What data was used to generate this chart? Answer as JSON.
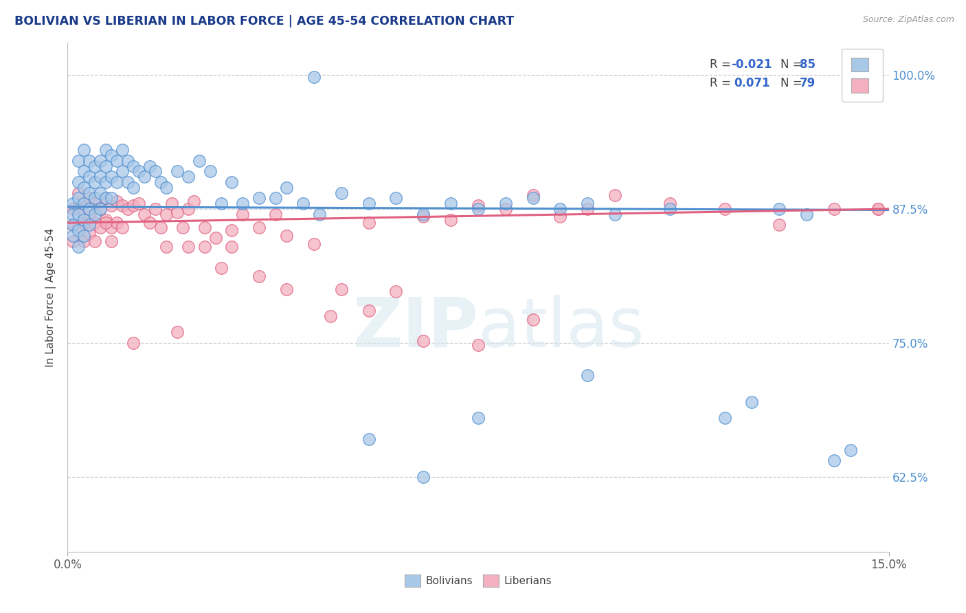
{
  "title": "BOLIVIAN VS LIBERIAN IN LABOR FORCE | AGE 45-54 CORRELATION CHART",
  "source_text": "Source: ZipAtlas.com",
  "ylabel": "In Labor Force | Age 45-54",
  "xmin": 0.0,
  "xmax": 0.15,
  "ymin": 0.555,
  "ymax": 1.03,
  "yticks": [
    0.625,
    0.75,
    0.875,
    1.0
  ],
  "ytick_labels": [
    "62.5%",
    "75.0%",
    "87.5%",
    "100.0%"
  ],
  "xtick_labels": [
    "0.0%",
    "15.0%"
  ],
  "xticks": [
    0.0,
    0.15
  ],
  "bolivia_R": -0.021,
  "bolivia_N": 85,
  "liberia_R": 0.071,
  "liberia_N": 79,
  "bolivia_color": "#a8c8e8",
  "liberia_color": "#f4b0c0",
  "bolivia_line_color": "#5090d0",
  "liberia_line_color": "#e06080",
  "legend_label_bolivia": "Bolivians",
  "legend_label_liberia": "Liberians",
  "watermark_zip": "ZIP",
  "watermark_atlas": "atlas",
  "bolivia_trend_x0": 0.0,
  "bolivia_trend_y0": 0.877,
  "bolivia_trend_x1": 0.15,
  "bolivia_trend_y1": 0.874,
  "liberia_trend_x0": 0.0,
  "liberia_trend_y0": 0.862,
  "liberia_trend_x1": 0.15,
  "liberia_trend_y1": 0.875,
  "bolivia_x": [
    0.001,
    0.001,
    0.001,
    0.001,
    0.002,
    0.002,
    0.002,
    0.002,
    0.002,
    0.002,
    0.003,
    0.003,
    0.003,
    0.003,
    0.003,
    0.003,
    0.004,
    0.004,
    0.004,
    0.004,
    0.004,
    0.005,
    0.005,
    0.005,
    0.005,
    0.006,
    0.006,
    0.006,
    0.006,
    0.007,
    0.007,
    0.007,
    0.007,
    0.008,
    0.008,
    0.008,
    0.009,
    0.009,
    0.01,
    0.01,
    0.011,
    0.011,
    0.012,
    0.012,
    0.013,
    0.014,
    0.015,
    0.016,
    0.017,
    0.018,
    0.02,
    0.022,
    0.024,
    0.026,
    0.028,
    0.03,
    0.032,
    0.035,
    0.038,
    0.04,
    0.043,
    0.046,
    0.05,
    0.055,
    0.06,
    0.065,
    0.07,
    0.075,
    0.08,
    0.085,
    0.09,
    0.095,
    0.1,
    0.11,
    0.12,
    0.125,
    0.13,
    0.135,
    0.14,
    0.143,
    0.045,
    0.055,
    0.065,
    0.075,
    0.095
  ],
  "bolivia_y": [
    0.88,
    0.87,
    0.86,
    0.85,
    0.92,
    0.9,
    0.885,
    0.87,
    0.855,
    0.84,
    0.93,
    0.91,
    0.895,
    0.88,
    0.865,
    0.85,
    0.92,
    0.905,
    0.89,
    0.875,
    0.86,
    0.915,
    0.9,
    0.885,
    0.87,
    0.92,
    0.905,
    0.89,
    0.875,
    0.93,
    0.915,
    0.9,
    0.885,
    0.925,
    0.905,
    0.885,
    0.92,
    0.9,
    0.93,
    0.91,
    0.92,
    0.9,
    0.915,
    0.895,
    0.91,
    0.905,
    0.915,
    0.91,
    0.9,
    0.895,
    0.91,
    0.905,
    0.92,
    0.91,
    0.88,
    0.9,
    0.88,
    0.885,
    0.885,
    0.895,
    0.88,
    0.87,
    0.89,
    0.88,
    0.885,
    0.87,
    0.88,
    0.875,
    0.88,
    0.885,
    0.875,
    0.88,
    0.87,
    0.875,
    0.68,
    0.695,
    0.875,
    0.87,
    0.64,
    0.65,
    0.998,
    0.66,
    0.625,
    0.68,
    0.72
  ],
  "liberia_x": [
    0.001,
    0.001,
    0.001,
    0.002,
    0.002,
    0.002,
    0.003,
    0.003,
    0.003,
    0.004,
    0.004,
    0.004,
    0.005,
    0.005,
    0.005,
    0.006,
    0.006,
    0.007,
    0.007,
    0.008,
    0.008,
    0.009,
    0.009,
    0.01,
    0.01,
    0.011,
    0.012,
    0.013,
    0.014,
    0.015,
    0.016,
    0.017,
    0.018,
    0.019,
    0.02,
    0.021,
    0.022,
    0.023,
    0.025,
    0.027,
    0.03,
    0.032,
    0.035,
    0.038,
    0.04,
    0.045,
    0.05,
    0.055,
    0.06,
    0.065,
    0.07,
    0.075,
    0.08,
    0.085,
    0.09,
    0.095,
    0.1,
    0.11,
    0.12,
    0.13,
    0.14,
    0.148,
    0.025,
    0.03,
    0.035,
    0.04,
    0.048,
    0.055,
    0.065,
    0.075,
    0.085,
    0.02,
    0.028,
    0.022,
    0.018,
    0.012,
    0.007,
    0.008,
    0.148
  ],
  "liberia_y": [
    0.875,
    0.86,
    0.845,
    0.89,
    0.875,
    0.858,
    0.88,
    0.862,
    0.845,
    0.885,
    0.868,
    0.852,
    0.88,
    0.862,
    0.845,
    0.875,
    0.858,
    0.885,
    0.865,
    0.878,
    0.858,
    0.882,
    0.862,
    0.878,
    0.858,
    0.875,
    0.878,
    0.88,
    0.87,
    0.862,
    0.875,
    0.858,
    0.87,
    0.88,
    0.872,
    0.858,
    0.875,
    0.882,
    0.858,
    0.848,
    0.855,
    0.87,
    0.858,
    0.87,
    0.85,
    0.842,
    0.8,
    0.862,
    0.798,
    0.868,
    0.865,
    0.878,
    0.875,
    0.888,
    0.868,
    0.875,
    0.888,
    0.88,
    0.875,
    0.86,
    0.875,
    0.875,
    0.84,
    0.84,
    0.812,
    0.8,
    0.775,
    0.78,
    0.752,
    0.748,
    0.772,
    0.76,
    0.82,
    0.84,
    0.84,
    0.75,
    0.862,
    0.845,
    0.875
  ]
}
